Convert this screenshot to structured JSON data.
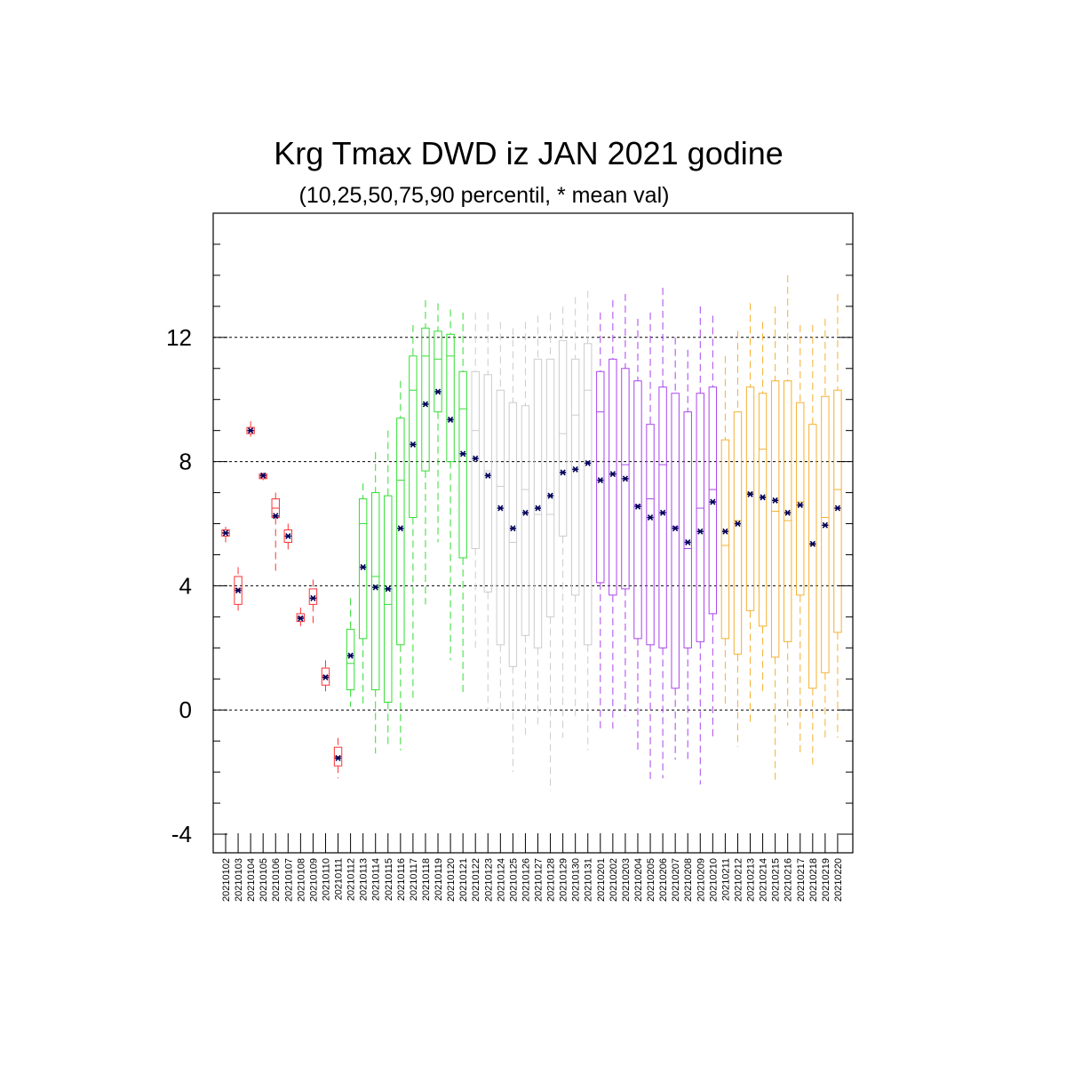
{
  "chart_data": {
    "type": "boxplot",
    "title": "Krg Tmax DWD iz JAN 2021 godine",
    "subtitle": "(10,25,50,75,90 percentil, * mean val)",
    "xlabel": "",
    "ylabel": "",
    "ylim": [
      -4.6,
      16
    ],
    "yticks": [
      -4,
      0,
      4,
      8,
      12
    ],
    "grid_lines": [
      0,
      4,
      8,
      12
    ],
    "mean_marker_color": "#00005a",
    "categories": [
      "20210102",
      "20210103",
      "20210104",
      "20210105",
      "20210106",
      "20210107",
      "20210108",
      "20210109",
      "20210110",
      "20210111",
      "20210112",
      "20210113",
      "20210114",
      "20210115",
      "20210116",
      "20210117",
      "20210118",
      "20210119",
      "20210120",
      "20210121",
      "20210122",
      "20210123",
      "20210124",
      "20210125",
      "20210126",
      "20210127",
      "20210128",
      "20210129",
      "20210130",
      "20210131",
      "20210201",
      "20210202",
      "20210203",
      "20210204",
      "20210205",
      "20210206",
      "20210207",
      "20210208",
      "20210209",
      "20210210",
      "20210211",
      "20210212",
      "20210213",
      "20210214",
      "20210215",
      "20210216",
      "20210217",
      "20210218",
      "20210219",
      "20210220"
    ],
    "series": [
      {
        "color": "#ff3333",
        "from": 0,
        "to": 9
      },
      {
        "color": "#33dd33",
        "from": 10,
        "to": 19
      },
      {
        "color": "#cccccc",
        "from": 20,
        "to": 29
      },
      {
        "color": "#aa44ee",
        "from": 30,
        "to": 39
      },
      {
        "color": "#f5b030",
        "from": 40,
        "to": 49
      }
    ],
    "boxes": [
      {
        "p10": 5.4,
        "p25": 5.6,
        "p50": 5.7,
        "p75": 5.8,
        "p90": 5.9,
        "mean": 5.7
      },
      {
        "p10": 3.2,
        "p25": 3.4,
        "p50": 3.9,
        "p75": 4.3,
        "p90": 4.6,
        "mean": 3.85
      },
      {
        "p10": 8.8,
        "p25": 8.9,
        "p50": 9.0,
        "p75": 9.1,
        "p90": 9.3,
        "mean": 9.0
      },
      {
        "p10": 7.4,
        "p25": 7.45,
        "p50": 7.5,
        "p75": 7.6,
        "p90": 7.65,
        "mean": 7.55
      },
      {
        "p10": 4.4,
        "p25": 6.2,
        "p50": 6.5,
        "p75": 6.8,
        "p90": 7.0,
        "mean": 6.25
      },
      {
        "p10": 5.1,
        "p25": 5.4,
        "p50": 5.6,
        "p75": 5.8,
        "p90": 6.0,
        "mean": 5.6
      },
      {
        "p10": 2.7,
        "p25": 2.85,
        "p50": 3.0,
        "p75": 3.1,
        "p90": 3.3,
        "mean": 2.95
      },
      {
        "p10": 2.8,
        "p25": 3.4,
        "p50": 3.6,
        "p75": 3.9,
        "p90": 4.2,
        "mean": 3.6
      },
      {
        "p10": 0.6,
        "p25": 0.8,
        "p50": 1.1,
        "p75": 1.35,
        "p90": 1.6,
        "mean": 1.05
      },
      {
        "p10": -2.2,
        "p25": -1.8,
        "p50": -1.5,
        "p75": -1.2,
        "p90": -0.9,
        "mean": -1.55
      },
      {
        "p10": 0.1,
        "p25": 0.65,
        "p50": 1.5,
        "p75": 2.6,
        "p90": 3.6,
        "mean": 1.75
      },
      {
        "p10": 0.2,
        "p25": 2.3,
        "p50": 6.0,
        "p75": 6.8,
        "p90": 7.3,
        "mean": 4.6
      },
      {
        "p10": -1.4,
        "p25": 0.65,
        "p50": 4.3,
        "p75": 7.0,
        "p90": 8.3,
        "mean": 3.95
      },
      {
        "p10": -1.2,
        "p25": 0.25,
        "p50": 3.4,
        "p75": 6.9,
        "p90": 9.0,
        "mean": 3.9
      },
      {
        "p10": -1.3,
        "p25": 2.1,
        "p50": 7.4,
        "p75": 9.4,
        "p90": 10.6,
        "mean": 5.85
      },
      {
        "p10": 0.3,
        "p25": 6.2,
        "p50": 10.3,
        "p75": 11.4,
        "p90": 12.4,
        "mean": 8.55
      },
      {
        "p10": 3.4,
        "p25": 7.7,
        "p50": 11.4,
        "p75": 12.3,
        "p90": 13.2,
        "mean": 9.85
      },
      {
        "p10": 5.4,
        "p25": 9.6,
        "p50": 11.3,
        "p75": 12.2,
        "p90": 13.1,
        "mean": 10.25
      },
      {
        "p10": 1.6,
        "p25": 8.0,
        "p50": 11.4,
        "p75": 12.1,
        "p90": 12.9,
        "mean": 9.35
      },
      {
        "p10": 0.5,
        "p25": 4.9,
        "p50": 9.7,
        "p75": 10.9,
        "p90": 12.8,
        "mean": 8.25
      },
      {
        "p10": 2.0,
        "p25": 5.2,
        "p50": 9.0,
        "p75": 10.9,
        "p90": 12.8,
        "mean": 8.1
      },
      {
        "p10": 0.0,
        "p25": 3.8,
        "p50": 7.7,
        "p75": 10.8,
        "p90": 12.8,
        "mean": 7.55
      },
      {
        "p10": 0.0,
        "p25": 2.1,
        "p50": 7.2,
        "p75": 10.3,
        "p90": 12.5,
        "mean": 6.5
      },
      {
        "p10": -2.0,
        "p25": 1.4,
        "p50": 5.4,
        "p75": 9.9,
        "p90": 12.3,
        "mean": 5.85
      },
      {
        "p10": -0.8,
        "p25": 2.4,
        "p50": 7.1,
        "p75": 9.8,
        "p90": 12.5,
        "mean": 6.35
      },
      {
        "p10": -0.5,
        "p25": 2.0,
        "p50": 6.3,
        "p75": 11.3,
        "p90": 12.7,
        "mean": 6.5
      },
      {
        "p10": -2.6,
        "p25": 3.0,
        "p50": 6.3,
        "p75": 11.3,
        "p90": 12.8,
        "mean": 6.9
      },
      {
        "p10": -0.9,
        "p25": 5.6,
        "p50": 8.9,
        "p75": 11.9,
        "p90": 13.0,
        "mean": 7.65
      },
      {
        "p10": -0.2,
        "p25": 3.7,
        "p50": 9.5,
        "p75": 11.3,
        "p90": 13.3,
        "mean": 7.75
      },
      {
        "p10": -1.3,
        "p25": 2.1,
        "p50": 10.3,
        "p75": 11.8,
        "p90": 13.5,
        "mean": 7.95
      },
      {
        "p10": -0.6,
        "p25": 4.1,
        "p50": 9.6,
        "p75": 10.9,
        "p90": 12.8,
        "mean": 7.4
      },
      {
        "p10": -0.6,
        "p25": 3.7,
        "p50": 7.6,
        "p75": 11.3,
        "p90": 13.2,
        "mean": 7.6
      },
      {
        "p10": -0.2,
        "p25": 3.9,
        "p50": 7.9,
        "p75": 11.0,
        "p90": 13.4,
        "mean": 7.45
      },
      {
        "p10": -1.3,
        "p25": 2.3,
        "p50": 6.6,
        "p75": 10.6,
        "p90": 12.6,
        "mean": 6.55
      },
      {
        "p10": -2.3,
        "p25": 2.1,
        "p50": 6.8,
        "p75": 9.2,
        "p90": 12.8,
        "mean": 6.2
      },
      {
        "p10": -2.2,
        "p25": 2.0,
        "p50": 7.9,
        "p75": 10.4,
        "p90": 13.6,
        "mean": 6.35
      },
      {
        "p10": -1.6,
        "p25": 0.7,
        "p50": 5.9,
        "p75": 10.2,
        "p90": 12.0,
        "mean": 5.85
      },
      {
        "p10": -1.6,
        "p25": 2.0,
        "p50": 5.2,
        "p75": 9.6,
        "p90": 11.6,
        "mean": 5.4
      },
      {
        "p10": -2.4,
        "p25": 2.2,
        "p50": 6.5,
        "p75": 10.2,
        "p90": 13.0,
        "mean": 5.75
      },
      {
        "p10": -0.9,
        "p25": 3.1,
        "p50": 7.1,
        "p75": 10.4,
        "p90": 12.7,
        "mean": 6.7
      },
      {
        "p10": 0.1,
        "p25": 2.3,
        "p50": 5.3,
        "p75": 8.7,
        "p90": 11.4,
        "mean": 5.75
      },
      {
        "p10": -1.2,
        "p25": 1.8,
        "p50": 6.1,
        "p75": 9.6,
        "p90": 12.2,
        "mean": 6.0
      },
      {
        "p10": -0.5,
        "p25": 3.2,
        "p50": 7.0,
        "p75": 10.4,
        "p90": 13.1,
        "mean": 6.95
      },
      {
        "p10": 0.5,
        "p25": 2.7,
        "p50": 8.4,
        "p75": 10.2,
        "p90": 12.5,
        "mean": 6.85
      },
      {
        "p10": -2.3,
        "p25": 1.7,
        "p50": 6.4,
        "p75": 10.6,
        "p90": 13.0,
        "mean": 6.75
      },
      {
        "p10": -0.5,
        "p25": 2.2,
        "p50": 6.1,
        "p75": 10.6,
        "p90": 14.0,
        "mean": 6.35
      },
      {
        "p10": -1.5,
        "p25": 3.7,
        "p50": 6.7,
        "p75": 9.9,
        "p90": 12.4,
        "mean": 6.6
      },
      {
        "p10": -1.8,
        "p25": 0.7,
        "p50": 5.3,
        "p75": 9.2,
        "p90": 12.4,
        "mean": 5.35
      },
      {
        "p10": -1.0,
        "p25": 1.2,
        "p50": 6.2,
        "p75": 10.1,
        "p90": 12.6,
        "mean": 5.95
      },
      {
        "p10": -0.9,
        "p25": 2.5,
        "p50": 7.1,
        "p75": 10.3,
        "p90": 13.4,
        "mean": 6.5
      }
    ]
  }
}
